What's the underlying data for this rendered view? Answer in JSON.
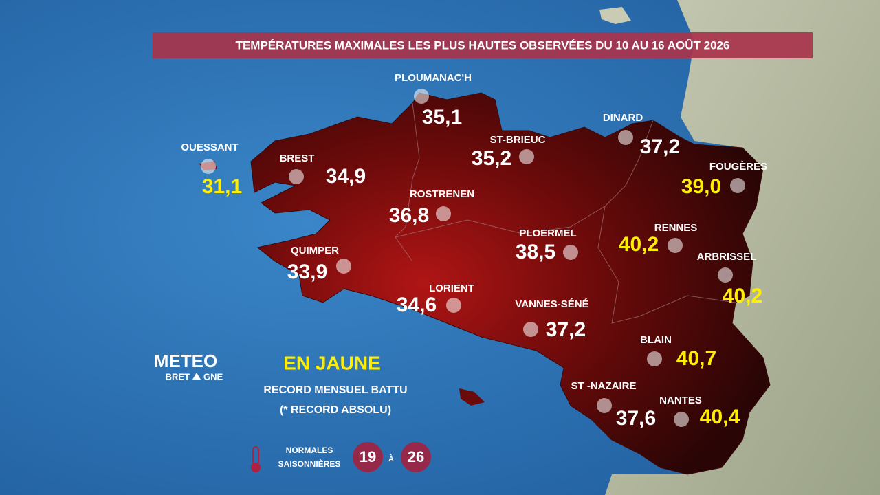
{
  "title": "TEMPÉRATURES MAXIMALES LES PLUS HAUTES OBSERVÉES DU 10 AU 16 AOÛT 2026",
  "stations": [
    {
      "name": "OUESSANT",
      "value": "31,1",
      "record": true
    },
    {
      "name": "BREST",
      "value": "34,9",
      "record": false
    },
    {
      "name": "PLOUMANAC'H",
      "value": "35,1",
      "record": false
    },
    {
      "name": "ST-BRIEUC",
      "value": "35,2",
      "record": false
    },
    {
      "name": "DINARD",
      "value": "37,2",
      "record": false
    },
    {
      "name": "FOUGÈRES",
      "value": "39,0",
      "record": true
    },
    {
      "name": "ROSTRENEN",
      "value": "36,8",
      "record": false
    },
    {
      "name": "PLOERMEL",
      "value": "38,5",
      "record": false
    },
    {
      "name": "RENNES",
      "value": "40,2",
      "record": true
    },
    {
      "name": "ARBRISSEL",
      "value": "40,2",
      "record": true
    },
    {
      "name": "QUIMPER",
      "value": "33,9",
      "record": false
    },
    {
      "name": "LORIENT",
      "value": "34,6",
      "record": false
    },
    {
      "name": "VANNES-SÉNÉ",
      "value": "37,2",
      "record": false
    },
    {
      "name": "BLAIN",
      "value": "40,7",
      "record": true
    },
    {
      "name": "ST -NAZAIRE",
      "value": "37,6",
      "record": false
    },
    {
      "name": "NANTES",
      "value": "40,4",
      "record": true
    }
  ],
  "legend": {
    "highlight": "EN JAUNE",
    "line1": "RECORD MENSUEL BATTU",
    "line2": "(* RECORD ABSOLU)"
  },
  "normals": {
    "label1": "NORMALES",
    "label2": "SAISONNIÈRES",
    "min": "19",
    "separator": "À",
    "max": "26"
  },
  "logo": {
    "top": "METEO",
    "bottom_left": "BRET",
    "bottom_right": "GNE"
  }
}
